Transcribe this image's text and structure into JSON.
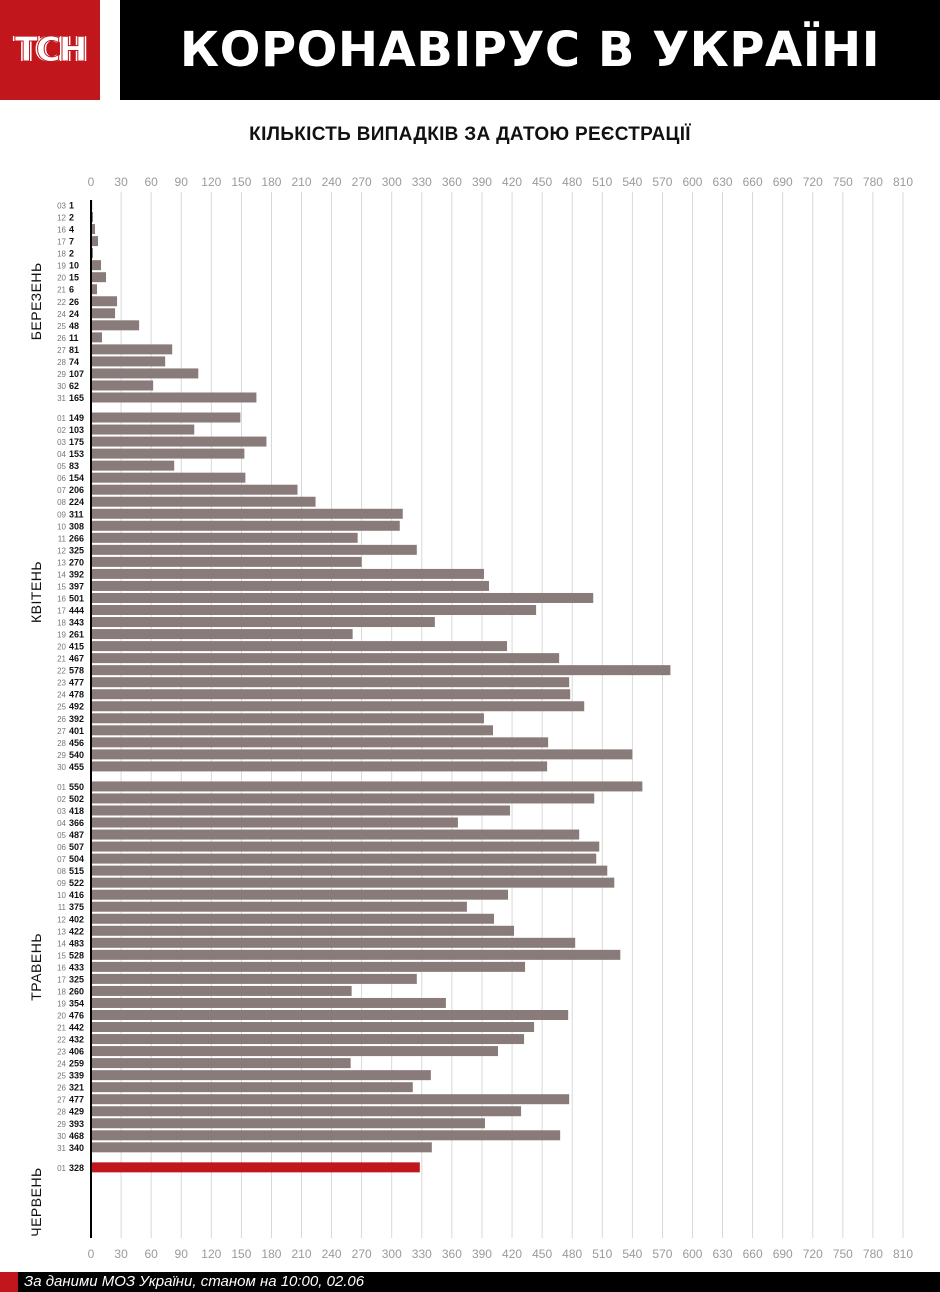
{
  "header": {
    "logo": "ТСН",
    "title": "КОРОНАВІРУС В УКРАЇНІ"
  },
  "colors": {
    "bar": "#8a7b7b",
    "highlight": "#c0161c",
    "header_bg": "#000000",
    "grid": "#cfcfcf",
    "axis_text": "#9a9a9a"
  },
  "footer": {
    "source": "За даними МОЗ України, станом на 10:00, 02.06"
  },
  "chart_data": {
    "type": "bar",
    "orientation": "horizontal",
    "title": "КІЛЬКІСТЬ ВИПАДКІВ ЗА ДАТОЮ РЕЄСТРАЦІЇ",
    "xlim": [
      0,
      810
    ],
    "xticks": [
      0,
      30,
      60,
      90,
      120,
      150,
      180,
      210,
      240,
      270,
      300,
      330,
      360,
      390,
      420,
      450,
      480,
      510,
      540,
      570,
      600,
      630,
      660,
      690,
      720,
      750,
      780,
      810
    ],
    "grid": true,
    "months": [
      {
        "name": "БЕРЕЗЕНЬ",
        "days": [
          "03",
          "12",
          "16",
          "17",
          "18",
          "19",
          "20",
          "21",
          "22",
          "24",
          "25",
          "26",
          "27",
          "28",
          "29",
          "30",
          "31"
        ],
        "values": [
          1,
          2,
          4,
          7,
          2,
          10,
          15,
          6,
          26,
          24,
          48,
          11,
          81,
          74,
          107,
          62,
          165
        ]
      },
      {
        "name": "КВІТЕНЬ",
        "days": [
          "01",
          "02",
          "03",
          "04",
          "05",
          "06",
          "07",
          "08",
          "09",
          "10",
          "11",
          "12",
          "13",
          "14",
          "15",
          "16",
          "17",
          "18",
          "19",
          "20",
          "21",
          "22",
          "23",
          "24",
          "25",
          "26",
          "27",
          "28",
          "29",
          "30"
        ],
        "values": [
          149,
          103,
          175,
          153,
          83,
          154,
          206,
          224,
          311,
          308,
          266,
          325,
          270,
          392,
          397,
          501,
          444,
          343,
          261,
          415,
          467,
          578,
          477,
          478,
          492,
          392,
          401,
          456,
          540,
          455
        ]
      },
      {
        "name": "ТРАВЕНЬ",
        "days": [
          "01",
          "02",
          "03",
          "04",
          "05",
          "06",
          "07",
          "08",
          "09",
          "10",
          "11",
          "12",
          "13",
          "14",
          "15",
          "16",
          "17",
          "18",
          "19",
          "20",
          "21",
          "22",
          "23",
          "24",
          "25",
          "26",
          "27",
          "28",
          "29",
          "30",
          "31"
        ],
        "values": [
          550,
          502,
          418,
          366,
          487,
          507,
          504,
          515,
          522,
          416,
          375,
          402,
          422,
          483,
          528,
          433,
          325,
          260,
          354,
          476,
          442,
          432,
          406,
          259,
          339,
          321,
          477,
          429,
          393,
          468,
          340
        ]
      },
      {
        "name": "ЧЕРВЕНЬ",
        "days": [
          "01"
        ],
        "values": [
          328
        ],
        "highlight": true
      }
    ]
  }
}
